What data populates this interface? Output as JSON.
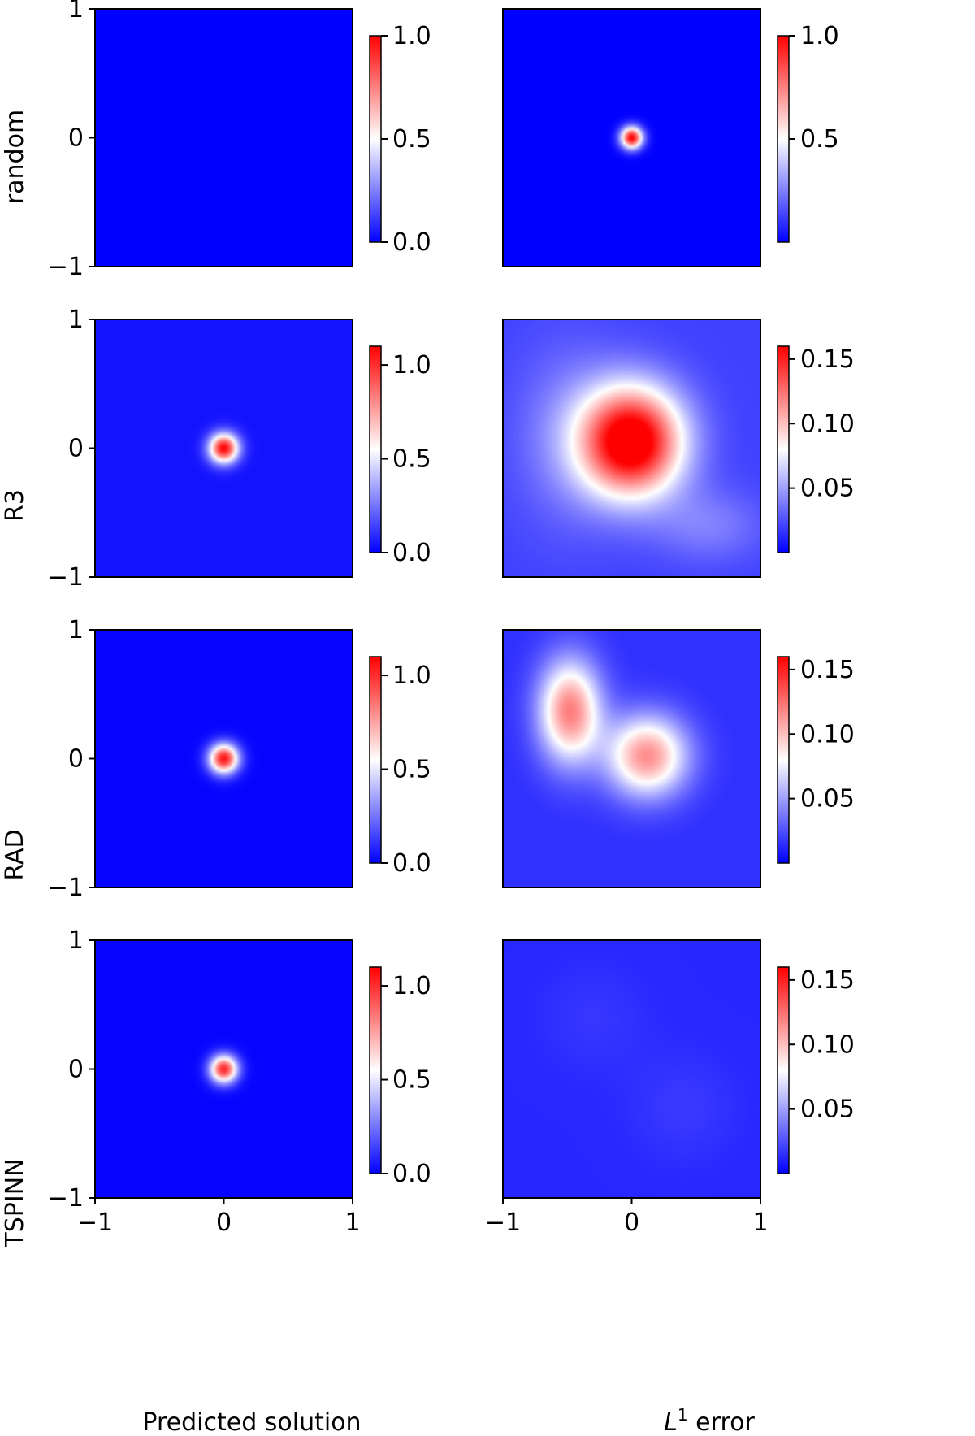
{
  "figure": {
    "row_labels": [
      "random",
      "R3",
      "RAD",
      "TSPINN"
    ],
    "col_labels": [
      "Predicted solution",
      "L1 error"
    ]
  },
  "colormap": {
    "name": "bwr",
    "low": "#0000ff",
    "mid": "#ffffff",
    "high": "#ff0000"
  },
  "chart_data": [
    {
      "type": "heatmap",
      "row": "random",
      "column": "Predicted solution",
      "xlim": [
        -1,
        1
      ],
      "ylim": [
        -1,
        1
      ],
      "yticks": [
        "−1",
        "0",
        "1"
      ],
      "colorbar": {
        "range": [
          0.0,
          1.0
        ],
        "ticks": [
          "0.0",
          "0.5",
          "1.0"
        ]
      },
      "field": {
        "background": 0.0,
        "peaks": []
      }
    },
    {
      "type": "heatmap",
      "row": "random",
      "column": "L1 error",
      "xlim": [
        -1,
        1
      ],
      "ylim": [
        -1,
        1
      ],
      "colorbar": {
        "range": [
          0.0,
          1.0
        ],
        "ticks": [
          "0.5",
          "1.0"
        ]
      },
      "field": {
        "background": 0.0,
        "peaks": [
          {
            "x": 0.0,
            "y": 0.0,
            "amp": 1.0,
            "sx": 0.06,
            "sy": 0.06
          }
        ]
      }
    },
    {
      "type": "heatmap",
      "row": "R3",
      "column": "Predicted solution",
      "xlim": [
        -1,
        1
      ],
      "ylim": [
        -1,
        1
      ],
      "yticks": [
        "−1",
        "0",
        "1"
      ],
      "colorbar": {
        "range": [
          0.0,
          1.1
        ],
        "ticks": [
          "0.0",
          "0.5",
          "1.0"
        ]
      },
      "field": {
        "background": 0.04,
        "peaks": [
          {
            "x": 0.0,
            "y": 0.0,
            "amp": 1.05,
            "sx": 0.08,
            "sy": 0.08
          }
        ]
      }
    },
    {
      "type": "heatmap",
      "row": "R3",
      "column": "L1 error",
      "xlim": [
        -1,
        1
      ],
      "ylim": [
        -1,
        1
      ],
      "colorbar": {
        "range": [
          0.0,
          0.16
        ],
        "ticks": [
          "0.05",
          "0.10",
          "0.15"
        ]
      },
      "field": {
        "background": 0.02,
        "peaks": [
          {
            "x": 0.0,
            "y": 0.05,
            "amp": 0.16,
            "sx": 0.28,
            "sy": 0.3
          },
          {
            "x": -0.5,
            "y": 0.1,
            "amp": 0.02,
            "sx": 0.3,
            "sy": 0.5
          },
          {
            "x": 0.6,
            "y": -0.6,
            "amp": 0.02,
            "sx": 0.3,
            "sy": 0.2
          }
        ]
      }
    },
    {
      "type": "heatmap",
      "row": "RAD",
      "column": "Predicted solution",
      "xlim": [
        -1,
        1
      ],
      "ylim": [
        -1,
        1
      ],
      "yticks": [
        "−1",
        "0",
        "1"
      ],
      "colorbar": {
        "range": [
          0.0,
          1.1
        ],
        "ticks": [
          "0.0",
          "0.5",
          "1.0"
        ]
      },
      "field": {
        "background": 0.01,
        "peaks": [
          {
            "x": 0.0,
            "y": 0.0,
            "amp": 1.05,
            "sx": 0.08,
            "sy": 0.08
          }
        ]
      }
    },
    {
      "type": "heatmap",
      "row": "RAD",
      "column": "L1 error",
      "xlim": [
        -1,
        1
      ],
      "ylim": [
        -1,
        1
      ],
      "colorbar": {
        "range": [
          0.0,
          0.16
        ],
        "ticks": [
          "0.05",
          "0.10",
          "0.15"
        ]
      },
      "field": {
        "background": 0.015,
        "peaks": [
          {
            "x": -0.48,
            "y": 0.37,
            "amp": 0.105,
            "sx": 0.17,
            "sy": 0.28
          },
          {
            "x": 0.12,
            "y": 0.02,
            "amp": 0.1,
            "sx": 0.22,
            "sy": 0.22
          }
        ]
      }
    },
    {
      "type": "heatmap",
      "row": "TSPINN",
      "column": "Predicted solution",
      "xlim": [
        -1,
        1
      ],
      "ylim": [
        -1,
        1
      ],
      "yticks": [
        "−1",
        "0",
        "1"
      ],
      "xticks": [
        "−1",
        "0",
        "1"
      ],
      "colorbar": {
        "range": [
          0.0,
          1.1
        ],
        "ticks": [
          "0.0",
          "0.5",
          "1.0"
        ]
      },
      "field": {
        "background": 0.01,
        "peaks": [
          {
            "x": 0.0,
            "y": 0.0,
            "amp": 1.0,
            "sx": 0.075,
            "sy": 0.075
          }
        ]
      }
    },
    {
      "type": "heatmap",
      "row": "TSPINN",
      "column": "L1 error",
      "xlim": [
        -1,
        1
      ],
      "ylim": [
        -1,
        1
      ],
      "xticks": [
        "−1",
        "0",
        "1"
      ],
      "colorbar": {
        "range": [
          0.0,
          0.16
        ],
        "ticks": [
          "0.05",
          "0.10",
          "0.15"
        ]
      },
      "field": {
        "background": 0.012,
        "peaks": [
          {
            "x": 0.4,
            "y": -0.3,
            "amp": 0.006,
            "sx": 0.3,
            "sy": 0.3
          },
          {
            "x": -0.3,
            "y": 0.4,
            "amp": 0.005,
            "sx": 0.3,
            "sy": 0.3
          }
        ]
      }
    }
  ]
}
